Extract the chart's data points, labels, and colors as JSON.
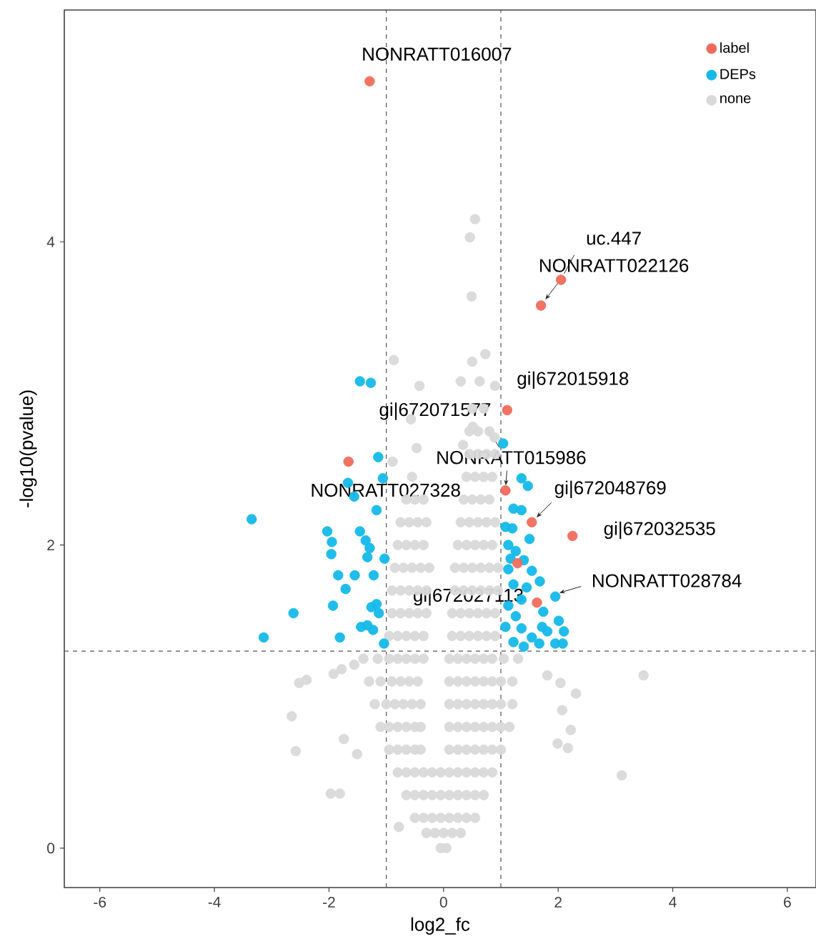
{
  "chart_data": {
    "type": "scatter",
    "xlabel": "log2_fc",
    "ylabel": "-log10(pvalue)",
    "xlim": [
      -6.62,
      6.5
    ],
    "ylim": [
      -0.26,
      5.53
    ],
    "xticks": [
      -6,
      -4,
      -2,
      0,
      2,
      4,
      6
    ],
    "yticks": [
      0,
      2,
      4
    ],
    "legend": "top right",
    "marker": "circle",
    "grid": false,
    "series": [
      {
        "name": "label",
        "color": "#f06b5c",
        "x": [
          -1.29,
          2.05,
          1.7,
          1.11,
          -1.66,
          1.08,
          1.54,
          2.25,
          1.29,
          1.63
        ],
        "values": [
          5.06,
          3.75,
          3.58,
          2.89,
          2.55,
          2.36,
          2.15,
          2.06,
          1.88,
          1.62
        ]
      },
      {
        "name": "DEPs",
        "color": "#14b9e9",
        "x": [
          -3.35,
          -3.14,
          -2.62,
          -2.03,
          -1.95,
          -1.96,
          -1.84,
          -1.71,
          -1.93,
          -1.81,
          -1.55,
          -1.46,
          -1.36,
          -1.29,
          -1.33,
          -1.22,
          -1.17,
          -1.14,
          -1.03,
          -1.26,
          -1.17,
          -1.13,
          -1.44,
          -1.33,
          -1.23,
          -1.04,
          -1.06,
          -1.56,
          -1.67,
          -1.46,
          -1.27,
          1.04,
          1.36,
          1.47,
          1.22,
          1.36,
          1.08,
          1.2,
          1.5,
          1.13,
          1.26,
          1.4,
          1.54,
          1.68,
          1.22,
          1.45,
          1.95,
          1.74,
          2.01,
          2.1,
          1.95,
          2.08,
          1.72,
          1.54,
          1.36,
          1.26,
          1.13,
          1.22,
          1.4,
          1.67,
          1.81,
          1.13,
          1.08,
          1.36,
          1.17
        ],
        "values": [
          2.17,
          1.39,
          1.55,
          2.09,
          2.02,
          1.94,
          1.8,
          1.71,
          1.6,
          1.39,
          1.8,
          2.09,
          2.03,
          1.98,
          1.92,
          1.8,
          2.23,
          2.58,
          1.91,
          1.59,
          1.61,
          1.55,
          1.46,
          1.47,
          1.44,
          1.35,
          2.44,
          2.32,
          2.41,
          3.08,
          3.07,
          2.67,
          2.44,
          2.39,
          2.24,
          2.23,
          2.12,
          2.11,
          2.04,
          2.0,
          1.96,
          1.9,
          1.83,
          1.76,
          1.74,
          1.72,
          1.66,
          1.56,
          1.5,
          1.43,
          1.35,
          1.35,
          1.46,
          1.39,
          1.45,
          1.53,
          1.6,
          1.36,
          1.33,
          1.35,
          1.43,
          1.84,
          1.46,
          1.64,
          1.91
        ]
      },
      {
        "name": "none",
        "color": "#d9d9d9",
        "x": [
          -0.05,
          0.05,
          -0.3,
          -0.15,
          0,
          0.15,
          0.3,
          -0.5,
          -0.35,
          -0.2,
          -0.05,
          0.1,
          0.25,
          0.4,
          0.55,
          -0.65,
          -0.5,
          -0.35,
          -0.2,
          -0.05,
          0.1,
          0.25,
          0.4,
          0.55,
          0.7,
          -0.8,
          -0.65,
          -0.5,
          -0.35,
          -0.2,
          -0.05,
          0.1,
          0.25,
          0.4,
          0.55,
          0.7,
          0.85,
          -0.95,
          -0.8,
          -0.65,
          -0.5,
          -0.4,
          0.1,
          0.25,
          0.4,
          0.55,
          0.7,
          0.85,
          1.0,
          -1.1,
          -0.95,
          -0.8,
          -0.65,
          -0.5,
          -0.4,
          0.1,
          0.25,
          0.4,
          0.55,
          0.7,
          0.85,
          1.0,
          1.15,
          -1.2,
          -1.0,
          -0.85,
          -0.7,
          -0.55,
          -0.4,
          0.1,
          0.25,
          0.4,
          0.55,
          0.7,
          0.85,
          1.0,
          1.2,
          -1.3,
          -1.1,
          -0.9,
          -0.75,
          -0.6,
          -0.45,
          0.1,
          0.25,
          0.4,
          0.55,
          0.7,
          0.85,
          1.0,
          1.2,
          -1.4,
          -1.15,
          -0.95,
          -0.8,
          -0.65,
          -0.5,
          -0.35,
          0.1,
          0.25,
          0.4,
          0.55,
          0.7,
          0.85,
          1.05,
          1.3,
          -0.95,
          -0.8,
          -0.65,
          -0.5,
          -0.35,
          0.15,
          0.3,
          0.45,
          0.6,
          0.75,
          0.9,
          -0.9,
          -0.75,
          -0.6,
          -0.45,
          -0.3,
          0.15,
          0.3,
          0.45,
          0.6,
          0.75,
          0.9,
          -0.9,
          -0.75,
          -0.6,
          -0.45,
          -0.3,
          0.2,
          0.35,
          0.5,
          0.65,
          0.8,
          0.95,
          -0.85,
          -0.7,
          -0.55,
          -0.4,
          -0.25,
          0.2,
          0.35,
          0.5,
          0.65,
          0.8,
          0.95,
          -0.8,
          -0.65,
          -0.5,
          -0.35,
          0.25,
          0.4,
          0.55,
          0.7,
          0.85,
          -0.75,
          -0.6,
          -0.45,
          -0.3,
          0.3,
          0.45,
          0.6,
          0.75,
          0.9,
          -0.65,
          -0.5,
          -0.35,
          0.35,
          0.5,
          0.65,
          0.8,
          -0.55,
          0.4,
          0.55,
          0.7,
          0.85,
          0.45,
          0.6,
          0.75,
          0.9,
          0.45,
          0.6,
          0.8,
          0.5,
          0.7,
          0.55,
          0.46,
          0.49,
          0.73,
          0.5,
          -0.87,
          -0.42,
          0.3,
          0.63,
          0.9,
          -0.57,
          0.51,
          0.89,
          0.34,
          -0.47,
          -0.89,
          3.49,
          3.11,
          -2.65,
          -2.58,
          -2.52,
          -2.39,
          -1.97,
          -1.81,
          -1.92,
          -1.56,
          -1.78,
          2.31,
          2.22,
          2.17,
          1.99,
          2.07,
          2.04,
          1.81,
          -0.78,
          -1.51,
          -1.74
        ],
        "values": [
          0,
          0,
          0.1,
          0.1,
          0.1,
          0.1,
          0.1,
          0.2,
          0.2,
          0.2,
          0.2,
          0.2,
          0.2,
          0.2,
          0.2,
          0.35,
          0.35,
          0.35,
          0.35,
          0.35,
          0.35,
          0.35,
          0.35,
          0.35,
          0.35,
          0.5,
          0.5,
          0.5,
          0.5,
          0.5,
          0.5,
          0.5,
          0.5,
          0.5,
          0.5,
          0.5,
          0.5,
          0.65,
          0.65,
          0.65,
          0.65,
          0.65,
          0.65,
          0.65,
          0.65,
          0.65,
          0.65,
          0.65,
          0.65,
          0.8,
          0.8,
          0.8,
          0.8,
          0.8,
          0.8,
          0.8,
          0.8,
          0.8,
          0.8,
          0.8,
          0.8,
          0.8,
          0.8,
          0.95,
          0.95,
          0.95,
          0.95,
          0.95,
          0.95,
          0.95,
          0.95,
          0.95,
          0.95,
          0.95,
          0.95,
          0.95,
          0.95,
          1.1,
          1.1,
          1.1,
          1.1,
          1.1,
          1.1,
          1.1,
          1.1,
          1.1,
          1.1,
          1.1,
          1.1,
          1.1,
          1.1,
          1.25,
          1.25,
          1.25,
          1.25,
          1.25,
          1.25,
          1.25,
          1.25,
          1.25,
          1.25,
          1.25,
          1.25,
          1.25,
          1.25,
          1.25,
          1.4,
          1.4,
          1.4,
          1.4,
          1.4,
          1.4,
          1.4,
          1.4,
          1.4,
          1.4,
          1.4,
          1.55,
          1.55,
          1.55,
          1.55,
          1.55,
          1.55,
          1.55,
          1.55,
          1.55,
          1.55,
          1.55,
          1.7,
          1.7,
          1.7,
          1.7,
          1.7,
          1.7,
          1.7,
          1.7,
          1.7,
          1.7,
          1.7,
          1.85,
          1.85,
          1.85,
          1.85,
          1.85,
          1.85,
          1.85,
          1.85,
          1.85,
          1.85,
          1.85,
          2.0,
          2.0,
          2.0,
          2.0,
          2.0,
          2.0,
          2.0,
          2.0,
          2.0,
          2.15,
          2.15,
          2.15,
          2.15,
          2.15,
          2.15,
          2.15,
          2.15,
          2.15,
          2.3,
          2.3,
          2.3,
          2.3,
          2.3,
          2.3,
          2.3,
          2.45,
          2.45,
          2.45,
          2.45,
          2.45,
          2.6,
          2.6,
          2.6,
          2.6,
          2.75,
          2.75,
          2.75,
          2.9,
          2.9,
          4.15,
          4.03,
          3.64,
          3.26,
          3.21,
          3.22,
          3.05,
          3.08,
          3.08,
          3.05,
          2.83,
          2.78,
          2.71,
          2.66,
          2.64,
          2.55,
          1.14,
          0.48,
          0.87,
          0.64,
          1.09,
          1.11,
          0.36,
          0.36,
          1.15,
          1.21,
          1.18,
          1.02,
          0.78,
          0.66,
          0.69,
          0.91,
          1.09,
          1.14,
          0.14,
          0.62,
          0.72
        ]
      }
    ],
    "ref_lines": [
      {
        "axis": "x",
        "value": -1,
        "line_style": "dashed",
        "color": "#555555"
      },
      {
        "axis": "x",
        "value": 1,
        "line_style": "dashed",
        "color": "#555555"
      },
      {
        "axis": "y",
        "value": 1.3,
        "line_style": "dashed",
        "color": "#555555"
      }
    ],
    "annotations": [
      {
        "text": "NONRATT016007",
        "x": -1.29,
        "y": 5.06
      },
      {
        "text": "uc.447",
        "x": 2.05,
        "y": 3.75
      },
      {
        "text": "NONRATT022126",
        "x": 1.7,
        "y": 3.58
      },
      {
        "text": "gi|672015918",
        "x": 1.11,
        "y": 2.89
      },
      {
        "text": "gi|672071577",
        "x": 1.05,
        "y": 2.6
      },
      {
        "text": "NONRATT015986",
        "x": 1.08,
        "y": 2.36
      },
      {
        "text": "NONRATT027328",
        "x": -1.66,
        "y": 2.55
      },
      {
        "text": "gi|672048769",
        "x": 1.54,
        "y": 2.15
      },
      {
        "text": "gi|672032535",
        "x": 2.25,
        "y": 2.06
      },
      {
        "text": "NONRATT028784",
        "x": 1.9,
        "y": 1.67
      },
      {
        "text": "gi|672027113",
        "x": 1.63,
        "y": 1.62
      }
    ]
  }
}
